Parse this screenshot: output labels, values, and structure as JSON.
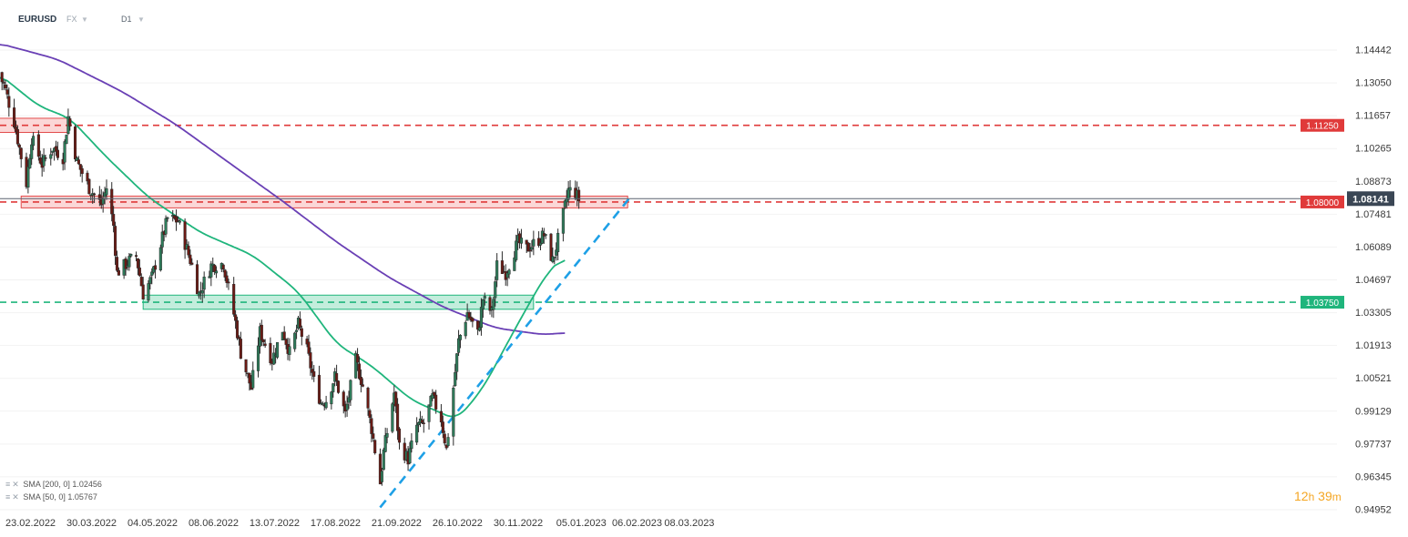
{
  "header": {
    "symbol": "EURUSD",
    "market": "FX",
    "timeframe": "D1"
  },
  "countdown": {
    "hours": "12",
    "h_unit": "h",
    "minutes": "39",
    "m_unit": "m"
  },
  "legend": [
    {
      "name": "SMA",
      "params": "[200, 0]",
      "value": "1.02456"
    },
    {
      "name": "SMA",
      "params": "[50, 0]",
      "value": "1.05767"
    }
  ],
  "colors": {
    "up": "#2e7d5b",
    "down": "#6b1a14",
    "sma200": "#6a40b5",
    "sma50": "#1fb57c",
    "resistance": "#e03a3a",
    "support": "#1fb57c",
    "trend": "#1ea0e6",
    "price": "#3a4654"
  },
  "chart_data": {
    "type": "candlestick",
    "y_axis": {
      "min": 0.94952,
      "max": 1.14442,
      "ticks": [
        "1.14442",
        "1.13050",
        "1.11657",
        "1.10265",
        "1.08873",
        "1.07481",
        "1.06089",
        "1.04697",
        "1.03305",
        "1.01913",
        "1.00521",
        "0.99129",
        "0.97737",
        "0.96345",
        "0.94952"
      ]
    },
    "x_axis": {
      "ticks": [
        "23.02.2022",
        "30.03.2022",
        "04.05.2022",
        "08.06.2022",
        "13.07.2022",
        "17.08.2022",
        "21.09.2022",
        "26.10.2022",
        "30.11.2022",
        "05.01.2023",
        "06.02.2023",
        "08.03.2023"
      ]
    },
    "current_price": "1.08141",
    "levels": [
      {
        "label": "1.11250",
        "value": 1.1125,
        "color": "red"
      },
      {
        "label": "1.08000",
        "value": 1.08,
        "color": "red"
      },
      {
        "label": "1.03750",
        "value": 1.0375,
        "color": "green"
      }
    ],
    "zones": [
      {
        "color": "red",
        "from_date": "2022-02-18",
        "to_date": "2022-03-31",
        "low": 1.1095,
        "high": 1.1155
      },
      {
        "color": "red",
        "from_date": "2022-03-04",
        "to_date": "2023-02-15",
        "low": 1.0775,
        "high": 1.0825
      },
      {
        "color": "green",
        "from_date": "2022-05-13",
        "to_date": "2022-12-23",
        "low": 1.0345,
        "high": 1.0405
      }
    ],
    "trendline": [
      {
        "date": "2022-09-26",
        "value": 0.9505
      },
      {
        "date": "2023-02-17",
        "value": 1.0825
      }
    ],
    "sma200": [
      [
        "2022-02-18",
        1.1475
      ],
      [
        "2022-03-25",
        1.1405
      ],
      [
        "2022-05-01",
        1.1268
      ],
      [
        "2022-06-01",
        1.1128
      ],
      [
        "2022-07-01",
        1.0968
      ],
      [
        "2022-08-01",
        1.0804
      ],
      [
        "2022-09-01",
        1.063
      ],
      [
        "2022-10-01",
        1.048
      ],
      [
        "2022-11-01",
        1.0355
      ],
      [
        "2022-12-01",
        1.0266
      ],
      [
        "2022-12-29",
        1.0237
      ],
      [
        "2023-01-10",
        1.0246
      ]
    ],
    "sma50": [
      [
        "2022-02-18",
        1.135
      ],
      [
        "2022-03-14",
        1.1207
      ],
      [
        "2022-04-01",
        1.1155
      ],
      [
        "2022-04-22",
        1.099
      ],
      [
        "2022-05-16",
        1.082
      ],
      [
        "2022-06-15",
        1.067
      ],
      [
        "2022-07-15",
        1.0574
      ],
      [
        "2022-08-10",
        1.042
      ],
      [
        "2022-09-01",
        1.0198
      ],
      [
        "2022-09-21",
        1.0106
      ],
      [
        "2022-10-14",
        0.996
      ],
      [
        "2022-11-09",
        0.9876
      ],
      [
        "2022-11-24",
        1.001
      ],
      [
        "2022-12-14",
        1.0284
      ],
      [
        "2022-12-30",
        1.0492
      ],
      [
        "2023-01-10",
        1.0575
      ]
    ],
    "anchors": [
      [
        "2022-02-18",
        1.135
      ],
      [
        "2022-02-22",
        1.13
      ],
      [
        "2022-02-28",
        1.114
      ],
      [
        "2022-03-07",
        1.088
      ],
      [
        "2022-03-10",
        1.107
      ],
      [
        "2022-03-16",
        1.096
      ],
      [
        "2022-03-22",
        1.103
      ],
      [
        "2022-03-28",
        1.099
      ],
      [
        "2022-03-31",
        1.116
      ],
      [
        "2022-04-05",
        1.097
      ],
      [
        "2022-04-12",
        1.086
      ],
      [
        "2022-04-19",
        1.079
      ],
      [
        "2022-04-22",
        1.086
      ],
      [
        "2022-04-26",
        1.07
      ],
      [
        "2022-04-28",
        1.05
      ],
      [
        "2022-05-05",
        1.055
      ],
      [
        "2022-05-09",
        1.057
      ],
      [
        "2022-05-13",
        1.041
      ],
      [
        "2022-05-18",
        1.048
      ],
      [
        "2022-05-23",
        1.062
      ],
      [
        "2022-05-27",
        1.073
      ],
      [
        "2022-06-02",
        1.072
      ],
      [
        "2022-06-10",
        1.053
      ],
      [
        "2022-06-14",
        1.041
      ],
      [
        "2022-06-21",
        1.053
      ],
      [
        "2022-06-28",
        1.054
      ],
      [
        "2022-07-05",
        1.029
      ],
      [
        "2022-07-08",
        1.016
      ],
      [
        "2022-07-14",
        1.001
      ],
      [
        "2022-07-19",
        1.025
      ],
      [
        "2022-07-26",
        1.013
      ],
      [
        "2022-08-01",
        1.026
      ],
      [
        "2022-08-05",
        1.016
      ],
      [
        "2022-08-10",
        1.028
      ],
      [
        "2022-08-15",
        1.017
      ],
      [
        "2022-08-19",
        1.004
      ],
      [
        "2022-08-23",
        0.995
      ],
      [
        "2022-08-26",
        0.996
      ],
      [
        "2022-08-31",
        1.006
      ],
      [
        "2022-09-06",
        0.99
      ],
      [
        "2022-09-12",
        1.013
      ],
      [
        "2022-09-16",
        1.002
      ],
      [
        "2022-09-21",
        0.984
      ],
      [
        "2022-09-26",
        0.961
      ],
      [
        "2022-09-28",
        0.974
      ],
      [
        "2022-10-04",
        0.999
      ],
      [
        "2022-10-07",
        0.977
      ],
      [
        "2022-10-12",
        0.971
      ],
      [
        "2022-10-17",
        0.985
      ],
      [
        "2022-10-21",
        0.986
      ],
      [
        "2022-10-26",
        0.997
      ],
      [
        "2022-10-31",
        0.988
      ],
      [
        "2022-11-03",
        0.975
      ],
      [
        "2022-11-10",
        1.021
      ],
      [
        "2022-11-15",
        1.033
      ],
      [
        "2022-11-21",
        1.024
      ],
      [
        "2022-11-24",
        1.039
      ],
      [
        "2022-11-29",
        1.033
      ],
      [
        "2022-12-02",
        1.053
      ],
      [
        "2022-12-07",
        1.05
      ],
      [
        "2022-12-14",
        1.063
      ],
      [
        "2022-12-19",
        1.06
      ],
      [
        "2022-12-26",
        1.064
      ],
      [
        "2022-12-29",
        1.066
      ],
      [
        "2023-01-03",
        1.055
      ],
      [
        "2023-01-06",
        1.064
      ],
      [
        "2023-01-12",
        1.085
      ],
      [
        "2023-01-16",
        1.084
      ],
      [
        "2023-01-18",
        1.081
      ]
    ]
  }
}
